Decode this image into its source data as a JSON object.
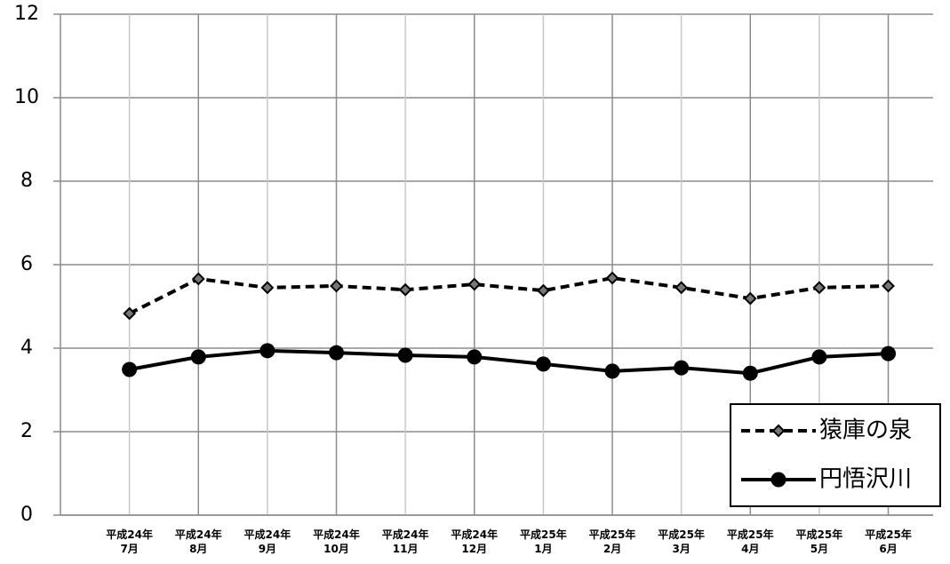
{
  "chart_data": {
    "type": "line",
    "categories": [
      [
        "平成24年",
        "7月"
      ],
      [
        "平成24年",
        "8月"
      ],
      [
        "平成24年",
        "9月"
      ],
      [
        "平成24年",
        "10月"
      ],
      [
        "平成24年",
        "11月"
      ],
      [
        "平成24年",
        "12月"
      ],
      [
        "平成25年",
        "1月"
      ],
      [
        "平成25年",
        "2月"
      ],
      [
        "平成25年",
        "3月"
      ],
      [
        "平成25年",
        "4月"
      ],
      [
        "平成25年",
        "5月"
      ],
      [
        "平成25年",
        "6月"
      ]
    ],
    "series": [
      {
        "name": "猿庫の泉",
        "color": "#000000",
        "dash": true,
        "marker": "diamond",
        "values": [
          4.83,
          5.66,
          5.45,
          5.49,
          5.4,
          5.53,
          5.38,
          5.68,
          5.45,
          5.19,
          5.45,
          5.49
        ]
      },
      {
        "name": "円悟沢川",
        "color": "#000000",
        "dash": false,
        "marker": "circle",
        "values": [
          3.49,
          3.79,
          3.94,
          3.89,
          3.83,
          3.79,
          3.62,
          3.45,
          3.53,
          3.4,
          3.79,
          3.87
        ]
      }
    ],
    "ylim": [
      0,
      12
    ],
    "yticks": [
      0,
      2,
      4,
      6,
      8,
      10,
      12
    ],
    "grid": true,
    "legend": "lower right"
  }
}
